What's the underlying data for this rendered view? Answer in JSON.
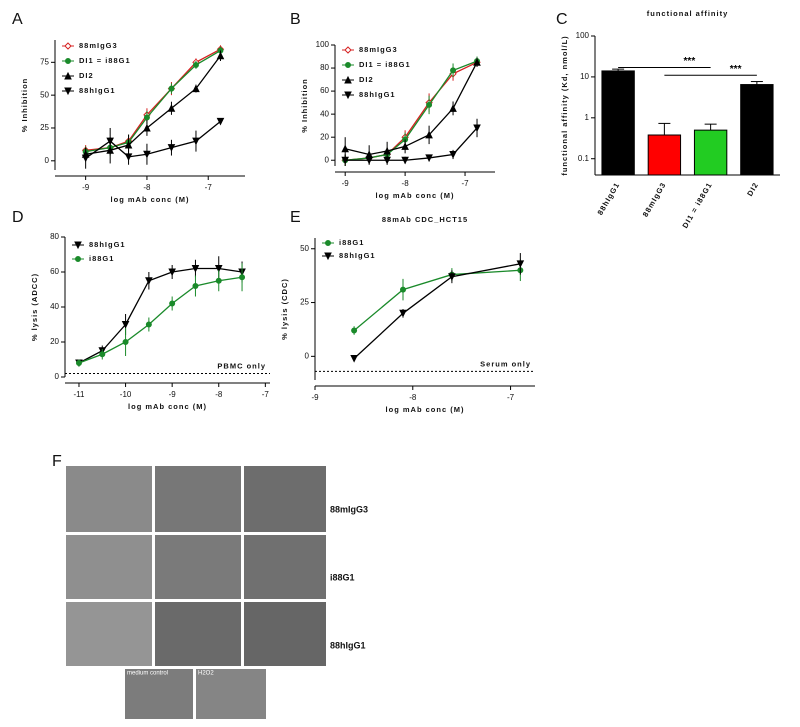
{
  "chart_data": [
    {
      "type": "line",
      "panel_label": "A",
      "xlabel": "log mAb conc (M)",
      "ylabel": "% Inhibition",
      "x": [
        -9,
        -8.6,
        -8.3,
        -8,
        -7.6,
        -7.2,
        -6.8
      ],
      "xlim": [
        -9.5,
        -6.4
      ],
      "xticks": [
        -9,
        -8,
        -7
      ],
      "ylim": [
        -7,
        92
      ],
      "yticks": [
        0,
        25,
        50,
        75
      ],
      "series": [
        {
          "name": "88mIgG3",
          "color": "#d62020",
          "marker": "diamond",
          "values": [
            8,
            10,
            15,
            35,
            55,
            75,
            85
          ],
          "errors": [
            4,
            5,
            5,
            5,
            5,
            3,
            3
          ]
        },
        {
          "name": "DI1 = i88G1",
          "color": "#1a8a2a",
          "marker": "circle",
          "values": [
            7,
            10,
            14,
            33,
            55,
            73,
            84
          ],
          "errors": [
            4,
            6,
            6,
            5,
            4,
            3,
            3
          ]
        },
        {
          "name": "DI2",
          "color": "#000000",
          "marker": "triangle",
          "values": [
            5,
            8,
            12,
            25,
            40,
            55,
            80
          ],
          "errors": [
            5,
            10,
            8,
            6,
            5,
            3,
            4
          ]
        },
        {
          "name": "88hIgG1",
          "color": "#000000",
          "marker": "tridown",
          "values": [
            2,
            15,
            3,
            5,
            10,
            15,
            30
          ],
          "errors": [
            8,
            10,
            6,
            8,
            6,
            8,
            2
          ]
        }
      ]
    },
    {
      "type": "line",
      "panel_label": "B",
      "xlabel": "log mAb conc (M)",
      "ylabel": "% Inhibition",
      "x": [
        -9,
        -8.6,
        -8.3,
        -8,
        -7.6,
        -7.2,
        -6.8
      ],
      "xlim": [
        -9.17,
        -6.5
      ],
      "xticks": [
        -9,
        -8,
        -7
      ],
      "ylim": [
        -5,
        100
      ],
      "yticks": [
        0,
        20,
        40,
        60,
        80,
        100
      ],
      "series": [
        {
          "name": "88mIgG3",
          "color": "#d62020",
          "marker": "diamond",
          "values": [
            0,
            2,
            5,
            20,
            50,
            75,
            85
          ],
          "errors": [
            5,
            5,
            6,
            6,
            8,
            6,
            4
          ]
        },
        {
          "name": "DI1 = i88G1",
          "color": "#1a8a2a",
          "marker": "circle",
          "values": [
            0,
            2,
            5,
            18,
            48,
            78,
            86
          ],
          "errors": [
            5,
            5,
            6,
            6,
            8,
            6,
            4
          ]
        },
        {
          "name": "DI2",
          "color": "#000000",
          "marker": "triangle",
          "values": [
            10,
            5,
            8,
            12,
            22,
            45,
            85
          ],
          "errors": [
            10,
            8,
            8,
            6,
            8,
            6,
            4
          ]
        },
        {
          "name": "88hIgG1",
          "color": "#000000",
          "marker": "tridown",
          "values": [
            0,
            0,
            0,
            0,
            2,
            5,
            28
          ],
          "errors": [
            5,
            4,
            4,
            3,
            3,
            4,
            8
          ]
        }
      ]
    },
    {
      "type": "bar",
      "panel_label": "C",
      "title": "functional affinity",
      "ylabel": "functional affinity (Kd, nmol/L)",
      "categories": [
        "88hIgG1",
        "88mIgG3",
        "DI1 = i88G1",
        "DI2"
      ],
      "values": [
        14,
        0.38,
        0.5,
        6.5
      ],
      "errors": [
        1.5,
        0.35,
        0.2,
        1.2
      ],
      "colors": [
        "#000000",
        "#ff0000",
        "#22cc22",
        "#000000"
      ],
      "log_scale": true,
      "ylim": [
        0.04,
        100
      ],
      "yticks": [
        0.1,
        1,
        10,
        100
      ],
      "annotations": [
        {
          "text": "***",
          "from": 0,
          "to": 2,
          "y": 17
        },
        {
          "text": "***",
          "from": 1,
          "to": 3,
          "y": 11
        }
      ]
    },
    {
      "type": "line",
      "panel_label": "D",
      "xlabel": "log mAb conc (M)",
      "ylabel": "% lysis (ADCC)",
      "x": [
        -11,
        -10.5,
        -10,
        -9.5,
        -9,
        -8.5,
        -8,
        -7.5
      ],
      "xlim": [
        -11.3,
        -6.9
      ],
      "xticks": [
        -11,
        -10,
        -9,
        -8,
        -7
      ],
      "ylim": [
        0,
        80
      ],
      "yticks": [
        0,
        20,
        40,
        60,
        80
      ],
      "baseline": 2,
      "baseline_label": "PBMC only",
      "series": [
        {
          "name": "88hIgG1",
          "color": "#000000",
          "marker": "tridown",
          "values": [
            8,
            15,
            30,
            55,
            60,
            62,
            62,
            60
          ],
          "errors": [
            2,
            3,
            6,
            5,
            4,
            5,
            7,
            6
          ]
        },
        {
          "name": "i88G1",
          "color": "#1a8a2a",
          "marker": "circle",
          "values": [
            8,
            13,
            20,
            30,
            42,
            52,
            55,
            57
          ],
          "errors": [
            2,
            3,
            8,
            4,
            4,
            6,
            6,
            8
          ]
        }
      ]
    },
    {
      "type": "line",
      "panel_label": "E",
      "title": "88mAb CDC_HCT15",
      "xlabel": "log mAb conc (M)",
      "ylabel": "% lysis (CDC)",
      "x": [
        -8.6,
        -8.1,
        -7.6,
        -6.9
      ],
      "xlim": [
        -9,
        -6.75
      ],
      "xticks": [
        -9,
        -8,
        -7
      ],
      "ylim": [
        -11,
        55
      ],
      "yticks": [
        0,
        25,
        50
      ],
      "baseline": -7,
      "baseline_label": "Serum only",
      "series": [
        {
          "name": "i88G1",
          "color": "#1a8a2a",
          "marker": "circle",
          "values": [
            12,
            31,
            38,
            40
          ],
          "errors": [
            2,
            5,
            3,
            5
          ]
        },
        {
          "name": "88hIgG1",
          "color": "#000000",
          "marker": "tridown",
          "values": [
            -1,
            20,
            37,
            43
          ],
          "errors": [
            1,
            2,
            3,
            5
          ]
        }
      ]
    }
  ],
  "micrographs": {
    "panel_label": "F",
    "row_labels": [
      "88mIgG3",
      "i88G1",
      "88hIgG1"
    ],
    "bottom_labels": [
      "medium control",
      "H2O2"
    ]
  }
}
